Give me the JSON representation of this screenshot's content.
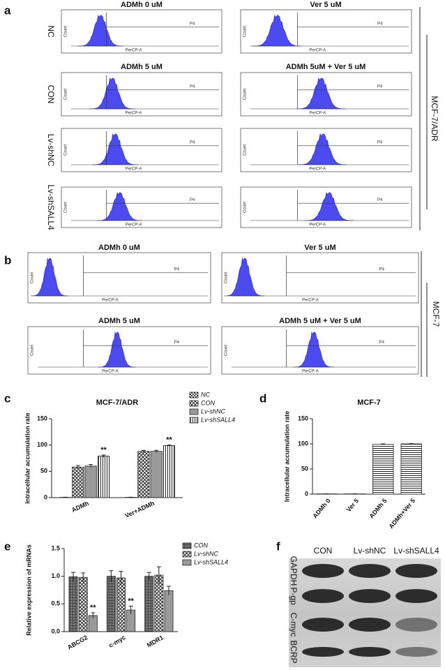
{
  "panel_labels": [
    "a",
    "b",
    "c",
    "d",
    "e",
    "f"
  ],
  "flow_a": {
    "group": "MCF-7/ADR",
    "column_titles": [
      "ADMh  0 uM",
      "Ver  5 uM",
      "ADMh  5 uM",
      "ADMh 5uM + Ver 5 uM"
    ],
    "row_labels": [
      "NC",
      "CON",
      "Lv-shNC",
      "Lv-shSALL4"
    ],
    "y_label": "Count",
    "x_label": "PerCP-A",
    "gate": "P4"
  },
  "flow_b": {
    "group": "MCF-7",
    "column_titles": [
      "ADMh  0 uM",
      "Ver  5 uM",
      "ADMh  5 uM",
      "ADMh 5 uM + Ver 5 uM"
    ],
    "y_label": "Count",
    "x_label": "PerCP-A",
    "gate": "P4"
  },
  "chart_data": [
    {
      "type": "bar",
      "title": "MCF-7/ADR",
      "y_label": "Intracellular accumulation rate",
      "categories": [
        "ADMh",
        "Ver+ADMh"
      ],
      "series": [
        {
          "name": "NC",
          "color": "#222222",
          "pattern": "checker",
          "values": [
            0.5,
            0.5
          ],
          "errors": [
            0.3,
            0.3
          ]
        },
        {
          "name": "CON",
          "color": "#222222",
          "pattern": "cross",
          "values": [
            58,
            88
          ],
          "errors": [
            3,
            2
          ]
        },
        {
          "name": "Lv-shNC",
          "color": "#222222",
          "pattern": "solid",
          "values": [
            60,
            88
          ],
          "errors": [
            3,
            2
          ]
        },
        {
          "name": "Lv-shSALL4",
          "color": "#222222",
          "pattern": "vstripe",
          "values": [
            79,
            99
          ],
          "errors": [
            2,
            1
          ],
          "annotations": [
            "**",
            "**"
          ]
        }
      ],
      "ylim": [
        0,
        150
      ],
      "yticks": [
        0,
        50,
        100,
        150
      ]
    },
    {
      "type": "bar",
      "title": "MCF-7",
      "y_label": "Intracellular accumulation rate",
      "categories": [
        "ADMh 0",
        "Ver 5",
        "ADMh 5",
        "ADMh+Ver 5"
      ],
      "color": "#222222",
      "pattern": "hstripe",
      "values": [
        0.5,
        0.5,
        99,
        100
      ],
      "errors": [
        0.2,
        0.2,
        1,
        0.5
      ],
      "ylim": [
        0,
        150
      ],
      "yticks": [
        0,
        50,
        100,
        150
      ]
    },
    {
      "type": "bar",
      "y_label": "Relative expression of mRNAs",
      "categories": [
        "ABCG2",
        "c-myc",
        "MDR1"
      ],
      "series": [
        {
          "name": "CON",
          "color": "#222222",
          "pattern": "grid",
          "values": [
            0.99,
            1.0,
            1.0
          ],
          "errors": [
            0.08,
            0.1,
            0.07
          ]
        },
        {
          "name": "Lv-shNC",
          "color": "#222222",
          "pattern": "cross",
          "values": [
            0.98,
            0.97,
            1.02
          ],
          "errors": [
            0.08,
            0.12,
            0.15
          ]
        },
        {
          "name": "Lv-shSALL4",
          "color": "#222222",
          "pattern": "solid",
          "values": [
            0.29,
            0.39,
            0.74
          ],
          "errors": [
            0.05,
            0.07,
            0.08
          ],
          "annotations": [
            "**",
            "**",
            null
          ]
        }
      ],
      "ylim": [
        0,
        1.5
      ],
      "yticks": [
        {
          "value": 0,
          "label": "0.0"
        },
        {
          "value": 0.5,
          "label": "0.5"
        },
        {
          "value": 1,
          "label": "1.0"
        },
        {
          "value": 1.5,
          "label": "1.5"
        }
      ]
    }
  ],
  "blot": {
    "lanes": [
      "CON",
      "Lv-shNC",
      "Lv-shSALL4"
    ],
    "rows": [
      "GAPDH",
      "P-gp",
      "C-myc",
      "BCRP"
    ]
  }
}
